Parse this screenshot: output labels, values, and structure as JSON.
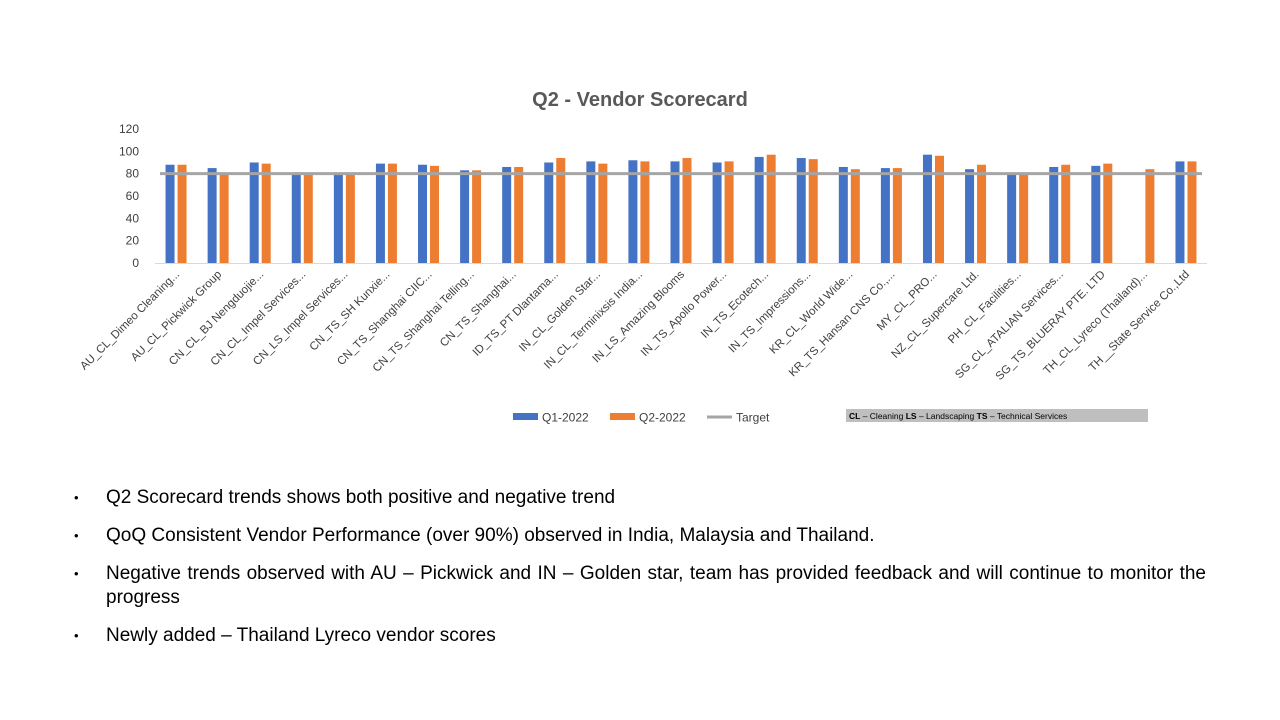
{
  "chart_data": {
    "type": "bar",
    "title": "Q2  - Vendor Scorecard",
    "ylim": [
      0,
      120
    ],
    "yticks": [
      0,
      20,
      40,
      60,
      80,
      100,
      120
    ],
    "categories": [
      "AU_CL_Dimeo Cleaning...",
      "AU_CL_Pickwick Group",
      "CN_CL_BJ Nengduojie...",
      "CN_CL_Impel Services...",
      "CN_LS_Impel Services...",
      "CN_TS_SH Kunxie...",
      "CN_TS_Shanghai CIIC...",
      "CN_TS_Shanghai Telling...",
      "CN_TS_Shanghai...",
      "ID_TS_PT Dlantama...",
      "IN_CL_Golden Star...",
      "IN_CL_Terminixsis India...",
      "IN_LS_Amazing Blooms",
      "IN_TS_Apollo Power...",
      "IN_TS_Ecotech...",
      "IN_TS_Impressions...",
      "KR_CL_World Wide...",
      "KR_TS_Hansan CNS Co.,...",
      "MY_CL_PRO...",
      "NZ_CL_Supercare Ltd.",
      "PH_CL_Facilities...",
      "SG_CL_ATALIAN Services...",
      "SG_TS_BLUERAY PTE. LTD",
      "TH_CL_Lyreco (Thailand)...",
      "TH__State Service Co.,Ltd"
    ],
    "series": [
      {
        "name": "Q1-2022",
        "color": "#4472C4",
        "values": [
          88,
          85,
          90,
          80,
          80,
          89,
          88,
          83,
          86,
          90,
          91,
          92,
          91,
          90,
          95,
          94,
          86,
          85,
          97,
          84,
          80,
          86,
          87,
          null,
          91
        ]
      },
      {
        "name": "Q2-2022",
        "color": "#ED7D31",
        "values": [
          88,
          80,
          89,
          80,
          80,
          89,
          87,
          83,
          86,
          94,
          89,
          91,
          94,
          91,
          97,
          93,
          84,
          85,
          96,
          88,
          80,
          88,
          89,
          84,
          91
        ]
      }
    ],
    "target": {
      "name": "Target",
      "value": 80,
      "color": "#A5A5A5"
    },
    "legend_position": "bottom",
    "gridlines": false
  },
  "abbreviation_note": {
    "parts": [
      {
        "text": "CL",
        "bold": true
      },
      {
        "text": " – Cleaning  ",
        "bold": false
      },
      {
        "text": "LS",
        "bold": true
      },
      {
        "text": " – Landscaping ",
        "bold": false
      },
      {
        "text": "TS",
        "bold": true
      },
      {
        "text": " – Technical Services",
        "bold": false
      }
    ],
    "background": "#BFBFBF"
  },
  "bullets": [
    "Q2 Scorecard trends shows both positive and negative trend",
    "QoQ Consistent Vendor Performance (over 90%) observed in India, Malaysia and Thailand.",
    "Negative trends observed with AU – Pickwick and IN – Golden star, team has provided feedback and will continue to monitor the progress",
    "Newly added – Thailand  Lyreco vendor scores"
  ],
  "bullet_glyph": "•"
}
